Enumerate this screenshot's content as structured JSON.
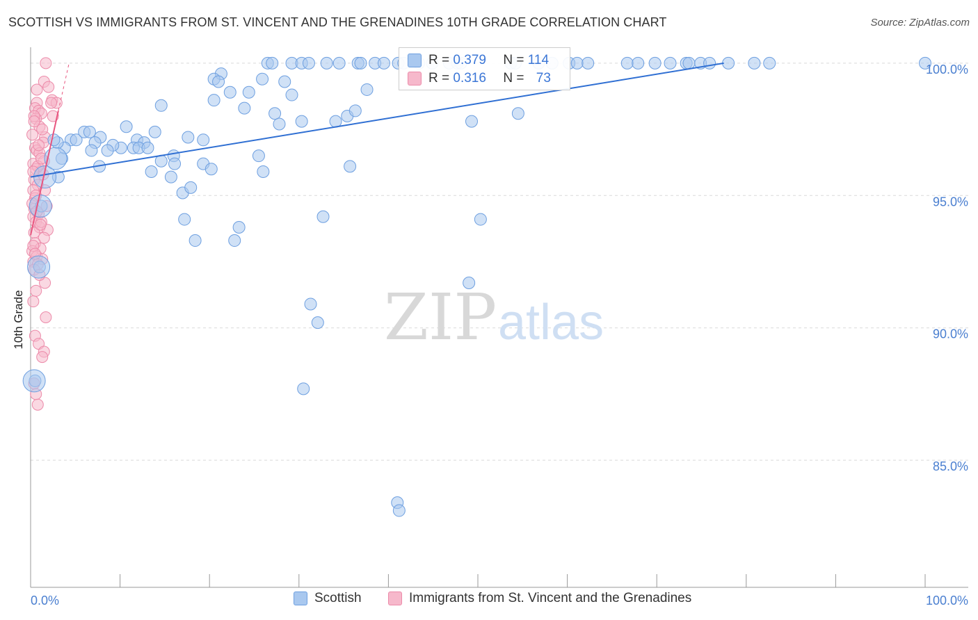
{
  "title": "SCOTTISH VS IMMIGRANTS FROM ST. VINCENT AND THE GRENADINES 10TH GRADE CORRELATION CHART",
  "source": "Source: ZipAtlas.com",
  "watermark": {
    "part1": "ZIP",
    "part2": "atlas"
  },
  "legend": {
    "rows": [
      {
        "r_label": "R = ",
        "r_value": "0.379",
        "n_label": "N = ",
        "n_value": "114"
      },
      {
        "r_label": "R = ",
        "r_value": "0.316",
        "n_label": "N = ",
        "n_value": "73"
      }
    ],
    "bottom": [
      "Scottish",
      "Immigrants from St. Vincent and the Grenadines"
    ]
  },
  "colors": {
    "blue_fill": "#a9c8ef",
    "blue_stroke": "#6d9fe0",
    "blue_line": "#2f6fd3",
    "pink_fill": "#f6b8cb",
    "pink_stroke": "#ec8aa9",
    "pink_line": "#e8557f",
    "tick_text": "#4a7fd0"
  },
  "chart_data": {
    "type": "scatter",
    "title": "SCOTTISH VS IMMIGRANTS FROM ST. VINCENT AND THE GRENADINES 10TH GRADE CORRELATION CHART",
    "xlabel": "",
    "ylabel": "10th Grade",
    "xlim": [
      0,
      100
    ],
    "ylim": [
      80.2,
      100.6
    ],
    "x_tick_labels": [
      "0.0%",
      "100.0%"
    ],
    "y_ticks": [
      85,
      90,
      95,
      100
    ],
    "y_tick_labels": [
      "85.0%",
      "90.0%",
      "95.0%",
      "100.0%"
    ],
    "series": [
      {
        "name": "Scottish",
        "r": 0.379,
        "n": 114,
        "trend": {
          "x": [
            0,
            77.5
          ],
          "y": [
            95.7,
            100.0
          ]
        },
        "points": [
          [
            26.5,
            100
          ],
          [
            27.0,
            100
          ],
          [
            29.2,
            100
          ],
          [
            30.3,
            100
          ],
          [
            31.1,
            100
          ],
          [
            33.1,
            100
          ],
          [
            34.5,
            100
          ],
          [
            36.6,
            100
          ],
          [
            36.9,
            100
          ],
          [
            38.5,
            100
          ],
          [
            39.5,
            100
          ],
          [
            41.1,
            100
          ],
          [
            41.7,
            100
          ],
          [
            43.4,
            100
          ],
          [
            44.9,
            100
          ],
          [
            46.8,
            100
          ],
          [
            47.7,
            100
          ],
          [
            48.1,
            100
          ],
          [
            53.7,
            100
          ],
          [
            54.2,
            100
          ],
          [
            56.8,
            100
          ],
          [
            58.3,
            100
          ],
          [
            60.2,
            100
          ],
          [
            61.1,
            100
          ],
          [
            62.3,
            100
          ],
          [
            66.7,
            100
          ],
          [
            67.9,
            100
          ],
          [
            69.8,
            100
          ],
          [
            71.5,
            100
          ],
          [
            73.3,
            100
          ],
          [
            73.6,
            100
          ],
          [
            74.9,
            100
          ],
          [
            75.9,
            100
          ],
          [
            78.0,
            100
          ],
          [
            80.9,
            100
          ],
          [
            82.6,
            100
          ],
          [
            100.0,
            100
          ],
          [
            21.3,
            99.6
          ],
          [
            20.5,
            99.4
          ],
          [
            21.0,
            99.3
          ],
          [
            25.9,
            99.4
          ],
          [
            28.4,
            99.3
          ],
          [
            22.3,
            98.9
          ],
          [
            24.4,
            98.9
          ],
          [
            37.6,
            99.0
          ],
          [
            29.2,
            98.8
          ],
          [
            20.5,
            98.6
          ],
          [
            14.6,
            98.4
          ],
          [
            23.9,
            98.3
          ],
          [
            27.3,
            98.1
          ],
          [
            30.3,
            97.8
          ],
          [
            34.1,
            97.8
          ],
          [
            35.4,
            98.0
          ],
          [
            36.3,
            98.2
          ],
          [
            27.8,
            97.7
          ],
          [
            49.3,
            97.8
          ],
          [
            54.5,
            98.1
          ],
          [
            10.7,
            97.6
          ],
          [
            13.9,
            97.4
          ],
          [
            17.6,
            97.2
          ],
          [
            19.3,
            97.1
          ],
          [
            11.9,
            97.1
          ],
          [
            12.7,
            97.0
          ],
          [
            10.1,
            96.8
          ],
          [
            11.5,
            96.8
          ],
          [
            12.1,
            96.8
          ],
          [
            13.1,
            96.8
          ],
          [
            14.6,
            96.3
          ],
          [
            16.0,
            96.5
          ],
          [
            4.5,
            97.1
          ],
          [
            5.1,
            97.1
          ],
          [
            6.0,
            97.4
          ],
          [
            6.6,
            97.4
          ],
          [
            7.8,
            97.2
          ],
          [
            7.2,
            97.0
          ],
          [
            9.2,
            96.9
          ],
          [
            6.8,
            96.7
          ],
          [
            8.6,
            96.7
          ],
          [
            25.5,
            96.5
          ],
          [
            7.7,
            96.1
          ],
          [
            13.5,
            95.9
          ],
          [
            15.7,
            95.7
          ],
          [
            16.1,
            96.2
          ],
          [
            19.3,
            96.2
          ],
          [
            20.2,
            96.0
          ],
          [
            26.0,
            95.9
          ],
          [
            35.7,
            96.1
          ],
          [
            17.0,
            95.1
          ],
          [
            17.9,
            95.3
          ],
          [
            17.2,
            94.1
          ],
          [
            23.3,
            93.8
          ],
          [
            32.7,
            94.2
          ],
          [
            50.3,
            94.1
          ],
          [
            18.4,
            93.3
          ],
          [
            22.8,
            93.3
          ],
          [
            49.0,
            91.7
          ],
          [
            31.3,
            90.9
          ],
          [
            32.1,
            90.2
          ],
          [
            30.5,
            87.7
          ],
          [
            41.0,
            83.4
          ],
          [
            41.2,
            83.1
          ],
          [
            3.1,
            95.7
          ],
          [
            3.5,
            96.4
          ],
          [
            3.8,
            96.8
          ],
          [
            1.2,
            94.6
          ],
          [
            1.0,
            92.3
          ],
          [
            0.5,
            88.0
          ],
          [
            3.0,
            97.0
          ],
          [
            2.6,
            97.1
          ]
        ],
        "large_points": [
          [
            1.6,
            95.7
          ],
          [
            2.8,
            96.4
          ],
          [
            1.1,
            94.6
          ],
          [
            0.9,
            92.3
          ],
          [
            0.4,
            88.0
          ]
        ]
      },
      {
        "name": "Immigrants from St. Vincent and the Grenadines",
        "r": 0.316,
        "n": 73,
        "trend": {
          "x": [
            0,
            3.1
          ],
          "y": [
            93.5,
            98.2
          ]
        },
        "trend_ext": {
          "x": [
            3.1,
            4.3
          ],
          "y": [
            98.2,
            100.0
          ]
        },
        "points": [
          [
            1.7,
            100
          ],
          [
            1.5,
            99.3
          ],
          [
            2.0,
            99.1
          ],
          [
            2.4,
            98.6
          ],
          [
            2.9,
            98.5
          ],
          [
            0.7,
            98.5
          ],
          [
            0.5,
            98.3
          ],
          [
            0.9,
            98.2
          ],
          [
            1.2,
            98.1
          ],
          [
            0.6,
            97.9
          ],
          [
            2.5,
            98.0
          ],
          [
            1.0,
            97.6
          ],
          [
            1.6,
            97.2
          ],
          [
            1.4,
            97.0
          ],
          [
            0.5,
            96.8
          ],
          [
            0.7,
            96.7
          ],
          [
            1.0,
            96.6
          ],
          [
            1.5,
            96.3
          ],
          [
            0.3,
            96.2
          ],
          [
            0.6,
            96.0
          ],
          [
            1.1,
            95.9
          ],
          [
            0.4,
            95.6
          ],
          [
            0.8,
            95.4
          ],
          [
            0.3,
            95.2
          ],
          [
            0.5,
            94.9
          ],
          [
            1.8,
            94.6
          ],
          [
            0.4,
            94.5
          ],
          [
            0.9,
            94.3
          ],
          [
            0.3,
            94.2
          ],
          [
            0.6,
            94.0
          ],
          [
            1.0,
            93.8
          ],
          [
            1.9,
            93.7
          ],
          [
            0.4,
            93.6
          ],
          [
            1.5,
            93.4
          ],
          [
            0.5,
            93.2
          ],
          [
            1.1,
            93.0
          ],
          [
            0.2,
            92.9
          ],
          [
            0.7,
            92.7
          ],
          [
            1.3,
            92.6
          ],
          [
            0.3,
            92.5
          ],
          [
            0.8,
            92.4
          ],
          [
            0.4,
            92.2
          ],
          [
            1.6,
            91.7
          ],
          [
            0.6,
            91.4
          ],
          [
            0.3,
            91.0
          ],
          [
            1.7,
            90.4
          ],
          [
            0.5,
            89.7
          ],
          [
            0.9,
            89.4
          ],
          [
            1.5,
            89.1
          ],
          [
            1.3,
            88.9
          ],
          [
            0.4,
            87.9
          ],
          [
            0.6,
            87.5
          ],
          [
            0.8,
            87.1
          ],
          [
            0.3,
            93.1
          ],
          [
            1.2,
            94.0
          ],
          [
            0.6,
            95.0
          ],
          [
            1.4,
            95.8
          ],
          [
            0.9,
            96.9
          ],
          [
            0.2,
            97.3
          ],
          [
            1.3,
            97.5
          ],
          [
            0.4,
            98.0
          ],
          [
            0.7,
            99.0
          ],
          [
            2.3,
            98.5
          ],
          [
            1.1,
            93.9
          ],
          [
            0.5,
            92.8
          ],
          [
            0.2,
            94.7
          ],
          [
            0.8,
            96.1
          ],
          [
            1.6,
            95.2
          ],
          [
            0.4,
            97.8
          ],
          [
            1.0,
            92.0
          ],
          [
            0.7,
            94.4
          ],
          [
            1.2,
            96.4
          ],
          [
            0.3,
            95.9
          ]
        ]
      }
    ]
  }
}
